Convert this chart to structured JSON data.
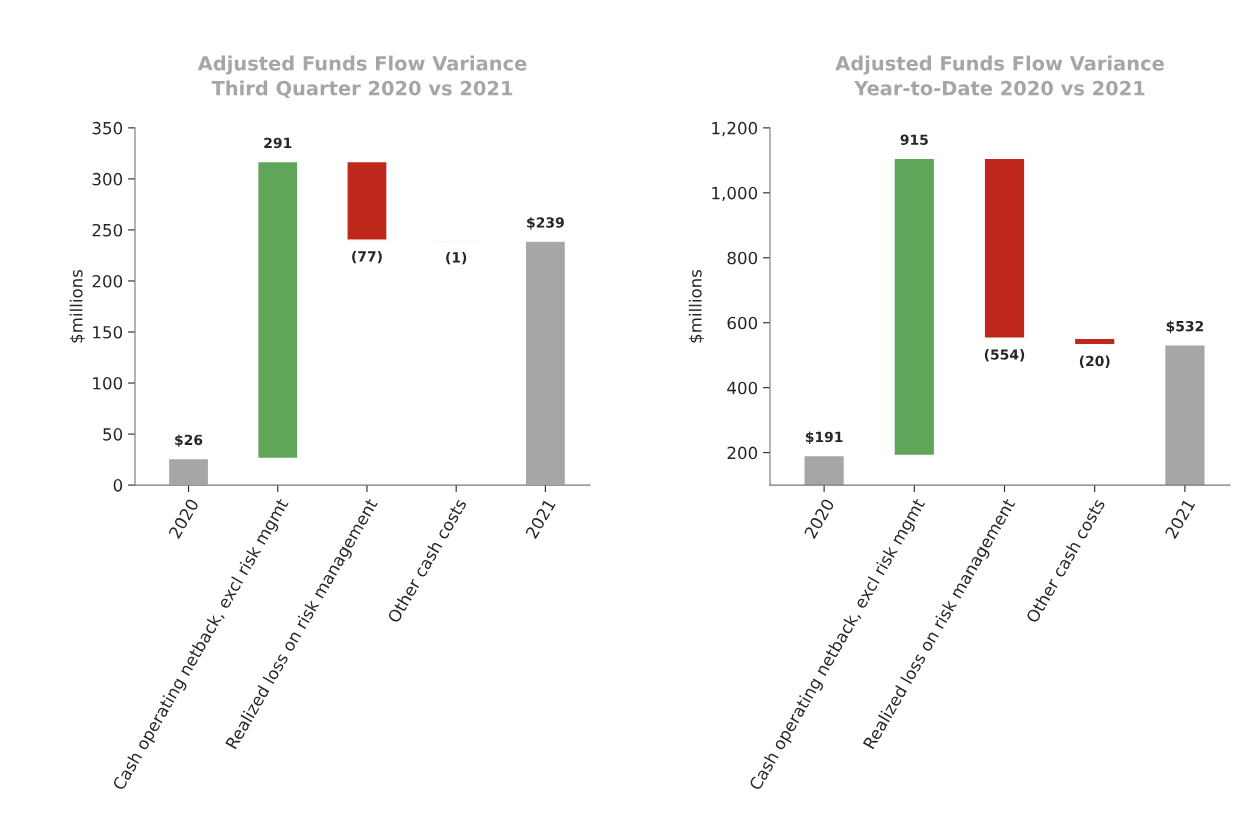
{
  "chart_data": [
    {
      "type": "bar",
      "title": "Adjusted Funds Flow Variance",
      "subtitle": "Third Quarter 2020 vs 2021",
      "ylabel": "$millions",
      "categories": [
        "2020",
        "Cash operating netback, excl risk mgmt",
        "Realized loss on risk management",
        "Other cash costs",
        "2021"
      ],
      "values": [
        26,
        291,
        -77,
        -1,
        239
      ],
      "base": [
        0,
        26,
        317,
        240,
        0
      ],
      "colors": [
        "#a6a6a6",
        "#5fa55a",
        "#c0281c",
        "#c0281c",
        "#a6a6a6"
      ],
      "value_labels": [
        "$26",
        "291",
        "(77)",
        "(1)",
        "$239"
      ],
      "ylim": [
        0,
        350
      ],
      "yticks": [
        0,
        50,
        100,
        150,
        200,
        250,
        300,
        350
      ],
      "grid": false
    },
    {
      "type": "bar",
      "title": "Adjusted Funds Flow Variance",
      "subtitle": "Year-to-Date 2020 vs 2021",
      "ylabel": "$millions",
      "categories": [
        "2020",
        "Cash operating netback, excl risk mgmt",
        "Realized loss on risk management",
        "Other cash costs",
        "2021"
      ],
      "values": [
        191,
        915,
        -554,
        -20,
        532
      ],
      "base": [
        0,
        191,
        1106,
        552,
        0
      ],
      "colors": [
        "#a6a6a6",
        "#5fa55a",
        "#c0281c",
        "#c0281c",
        "#a6a6a6"
      ],
      "value_labels": [
        "$191",
        "915",
        "(554)",
        "(20)",
        "$532"
      ],
      "ylim": [
        100,
        1200
      ],
      "yticks": [
        200,
        400,
        600,
        800,
        {
          "value": 1000,
          "label": "1,000"
        },
        {
          "value": 1200,
          "label": "1,200"
        }
      ],
      "grid": false
    }
  ]
}
